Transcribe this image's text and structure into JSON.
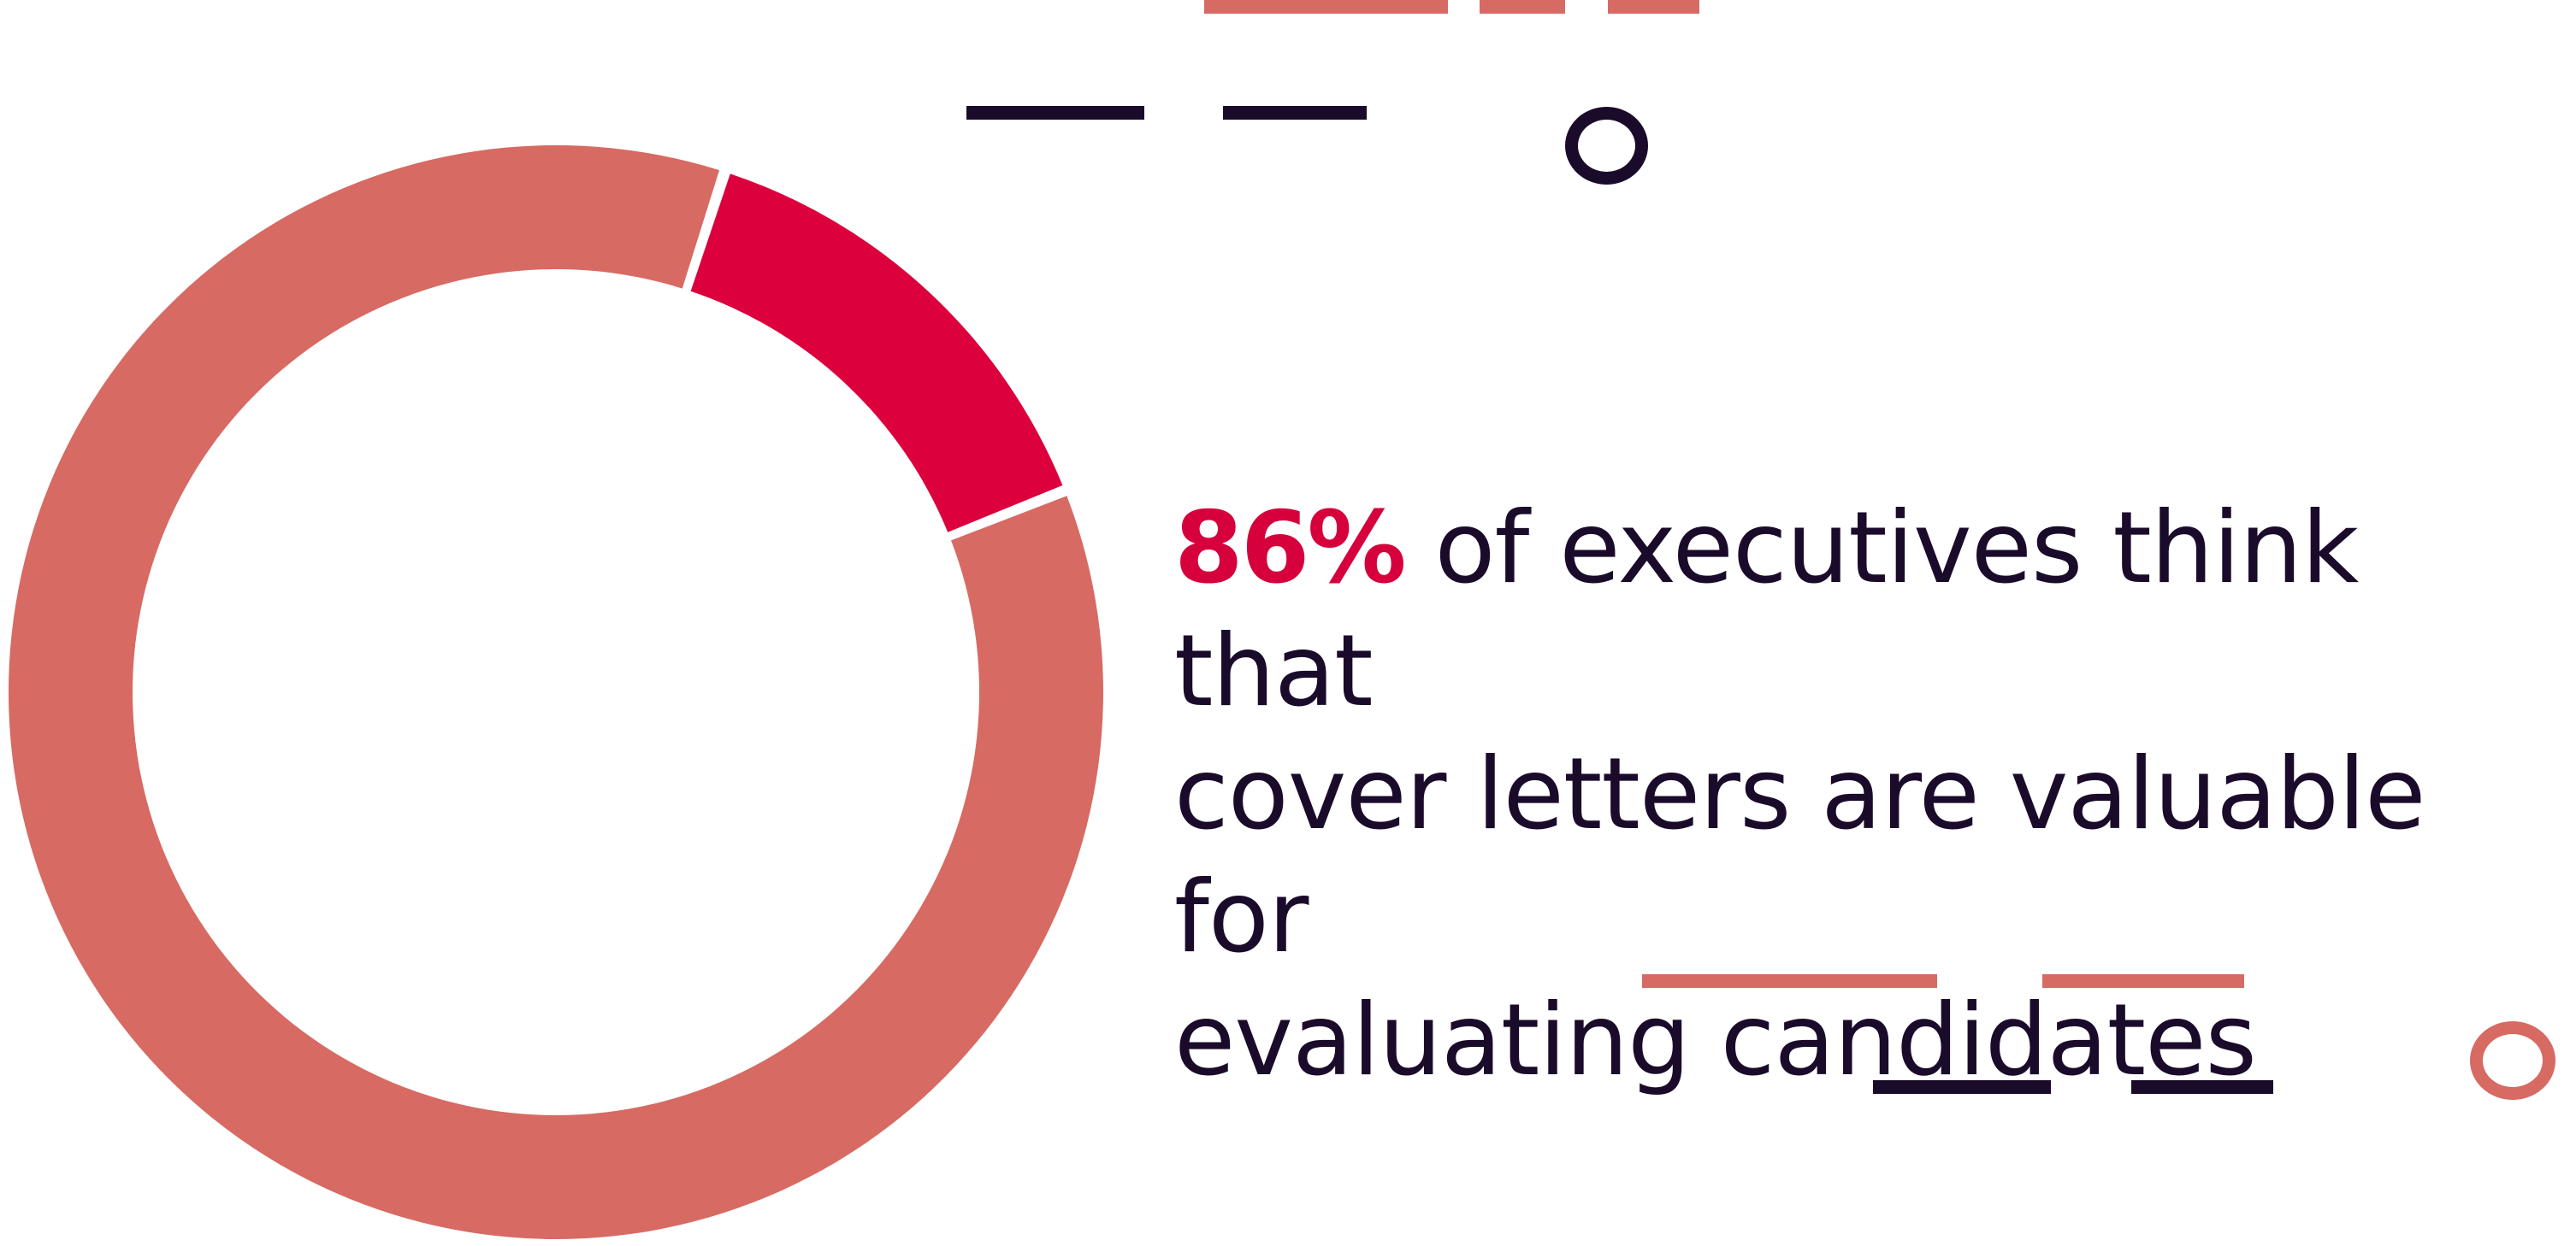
{
  "chart_data": {
    "type": "pie",
    "style": "donut",
    "slices": [
      {
        "label": "",
        "value": 86,
        "color": "#D76A63"
      },
      {
        "label": "",
        "value": 14,
        "color": "#DC003C"
      }
    ],
    "title": "",
    "legend": "none"
  },
  "headline": {
    "stat": "86%",
    "line1_rest": " of executives think that",
    "line2": "cover letters are valuable for",
    "line3": "evaluating candidates"
  },
  "colors": {
    "coral": "#D76A63",
    "crimson": "#D6003C",
    "dark": "#1A0B2B",
    "background": "#FFFFFF"
  }
}
